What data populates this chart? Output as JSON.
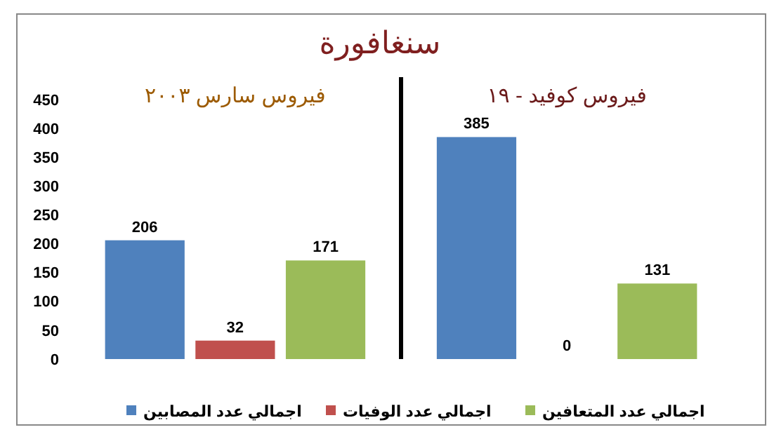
{
  "chart_data": {
    "type": "bar",
    "title": "سنغافورة",
    "categories": [
      "فيروس سارس ٢٠٠٣",
      "فيروس كوفيد - ١٩"
    ],
    "series": [
      {
        "name": "اجمالي عدد المصابين",
        "color": "#4f81bd",
        "values": [
          206,
          385
        ]
      },
      {
        "name": "اجمالي عدد الوفيات",
        "color": "#c0504d",
        "values": [
          32,
          0
        ]
      },
      {
        "name": "اجمالي عدد المتعافين",
        "color": "#9bbb59",
        "values": [
          171,
          131
        ]
      }
    ],
    "ylim": [
      0,
      450
    ],
    "yticks": [
      0,
      50,
      100,
      150,
      200,
      250,
      300,
      350,
      400,
      450
    ],
    "grid": false,
    "legend": "bottom",
    "data_labels": true
  }
}
